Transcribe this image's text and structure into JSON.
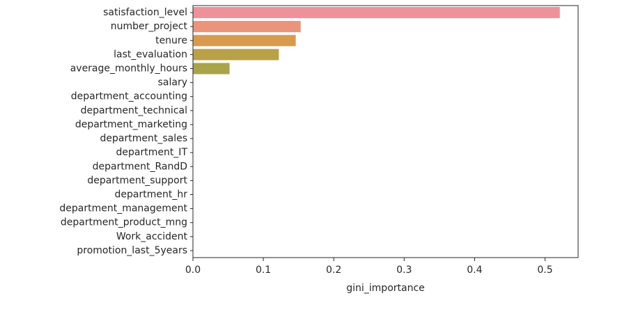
{
  "chart_data": {
    "type": "bar",
    "orientation": "horizontal",
    "title": "",
    "xlabel": "gini_importance",
    "ylabel": "",
    "xlim": [
      0,
      0.547
    ],
    "xticks": [
      0.0,
      0.1,
      0.2,
      0.3,
      0.4,
      0.5
    ],
    "xtick_labels": [
      "0.0",
      "0.1",
      "0.2",
      "0.3",
      "0.4",
      "0.5"
    ],
    "grid": false,
    "categories": [
      "satisfaction_level",
      "number_project",
      "tenure",
      "last_evaluation",
      "average_monthly_hours",
      "salary",
      "department_accounting",
      "department_technical",
      "department_marketing",
      "department_sales",
      "department_IT",
      "department_RandD",
      "department_support",
      "department_hr",
      "department_management",
      "department_product_mng",
      "Work_accident",
      "promotion_last_5years"
    ],
    "values": [
      0.521,
      0.153,
      0.146,
      0.122,
      0.052,
      0.0,
      0.0,
      0.0,
      0.0,
      0.0,
      0.0,
      0.0,
      0.0,
      0.0,
      0.0,
      0.0,
      0.0,
      0.0
    ],
    "colors": [
      "#ee929a",
      "#ea9479",
      "#d99a4e",
      "#b9a146",
      "#a9a44a"
    ]
  }
}
